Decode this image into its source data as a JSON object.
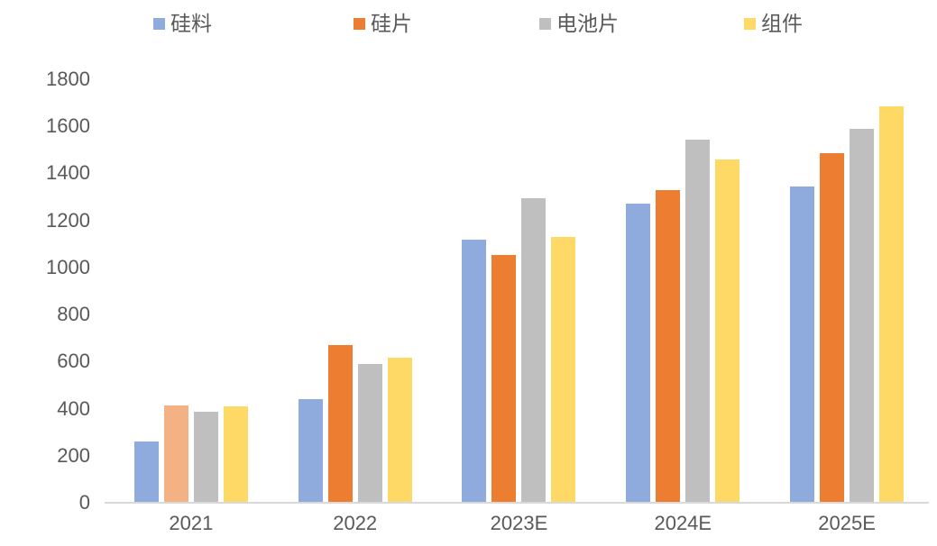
{
  "chart_data": {
    "type": "bar",
    "title": "",
    "xlabel": "",
    "ylabel": "",
    "categories": [
      "2021",
      "2022",
      "2023E",
      "2024E",
      "2025E"
    ],
    "series": [
      {
        "name": "硅料",
        "color": "#8FAADC",
        "values": [
          260,
          440,
          1120,
          1270,
          1345
        ]
      },
      {
        "name": "硅片",
        "color": "#ED7D31",
        "values": [
          415,
          670,
          1055,
          1330,
          1485
        ]
      },
      {
        "name": "电池片",
        "color": "#BFBFBF",
        "values": [
          385,
          590,
          1295,
          1545,
          1590
        ]
      },
      {
        "name": "组件",
        "color": "#FFD966",
        "values": [
          410,
          615,
          1130,
          1460,
          1685
        ]
      }
    ],
    "color_overrides": [
      {
        "category": "2021",
        "series": "硅片",
        "color": "#F4B183"
      }
    ],
    "ylim": [
      0,
      1800
    ],
    "ytick_step": 200,
    "yticks": [
      0,
      200,
      400,
      600,
      800,
      1000,
      1200,
      1400,
      1600,
      1800
    ],
    "grid": false,
    "legend_position": "top",
    "colors": {
      "axis_line": "#D9D9D9",
      "label_text": "#595959",
      "background": "#FFFFFF"
    }
  }
}
